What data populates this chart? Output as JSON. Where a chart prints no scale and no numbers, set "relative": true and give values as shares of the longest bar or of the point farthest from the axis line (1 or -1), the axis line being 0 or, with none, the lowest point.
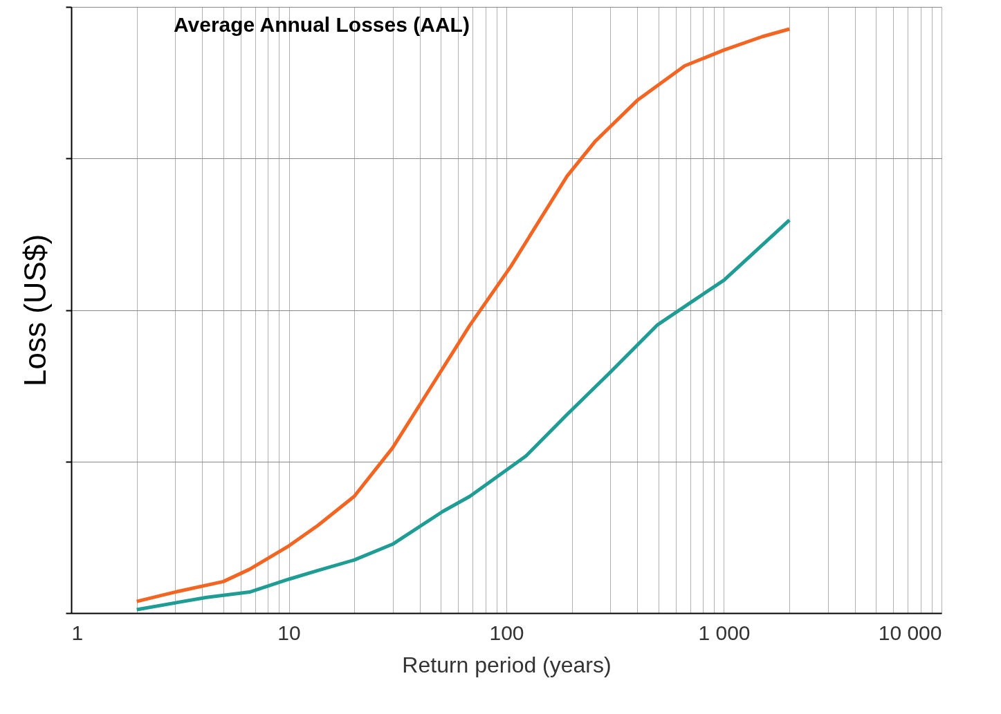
{
  "chart_data": {
    "type": "line",
    "title": "Average Annual Losses (AAL)",
    "xlabel": "Return period (years)",
    "ylabel": "Loss (US$)",
    "relative": true,
    "log": "x",
    "grid": true,
    "xlim": [
      1,
      10000
    ],
    "xticks": [
      {
        "value": 1,
        "label": "1"
      },
      {
        "value": 2,
        "label": null
      },
      {
        "value": 3,
        "label": null
      },
      {
        "value": 4,
        "label": null
      },
      {
        "value": 5,
        "label": null
      },
      {
        "value": 6,
        "label": null
      },
      {
        "value": 7,
        "label": null
      },
      {
        "value": 8,
        "label": null
      },
      {
        "value": 9,
        "label": null
      },
      {
        "value": 10,
        "label": "10"
      },
      {
        "value": 20,
        "label": null
      },
      {
        "value": 30,
        "label": null
      },
      {
        "value": 40,
        "label": null
      },
      {
        "value": 50,
        "label": null
      },
      {
        "value": 60,
        "label": null
      },
      {
        "value": 70,
        "label": null
      },
      {
        "value": 80,
        "label": null
      },
      {
        "value": 90,
        "label": null
      },
      {
        "value": 100,
        "label": "100"
      },
      {
        "value": 200,
        "label": null
      },
      {
        "value": 300,
        "label": null
      },
      {
        "value": 400,
        "label": null
      },
      {
        "value": 500,
        "label": null
      },
      {
        "value": 600,
        "label": null
      },
      {
        "value": 700,
        "label": null
      },
      {
        "value": 800,
        "label": null
      },
      {
        "value": 900,
        "label": null
      },
      {
        "value": 1000,
        "label": "1 000"
      },
      {
        "value": 2000,
        "label": null
      },
      {
        "value": 3000,
        "label": null
      },
      {
        "value": 4000,
        "label": null
      },
      {
        "value": 5000,
        "label": null
      },
      {
        "value": 6000,
        "label": null
      },
      {
        "value": 7000,
        "label": null
      },
      {
        "value": 8000,
        "label": null
      },
      {
        "value": 9000,
        "label": null
      },
      {
        "value": 10000,
        "label": "10 000"
      }
    ],
    "series": [
      {
        "color": "#f26522",
        "x": [
          2,
          3,
          5,
          6.6,
          10,
          13.6,
          20,
          30,
          41,
          68,
          105,
          190,
          255,
          400,
          660,
          1000,
          1500,
          2000
        ],
        "values": [
          0.02,
          0.036,
          0.054,
          0.075,
          0.115,
          0.15,
          0.2,
          0.283,
          0.363,
          0.493,
          0.594,
          0.748,
          0.807,
          0.878,
          0.937,
          0.964,
          0.987,
          1
        ]
      },
      {
        "color": "#1f9c94",
        "x": [
          2,
          4.2,
          6.6,
          10,
          13.6,
          20,
          30,
          51,
          68,
          123,
          190,
          296,
          493,
          711,
          1000,
          2000
        ],
        "values": [
          0.006,
          0.027,
          0.036,
          0.058,
          0.073,
          0.091,
          0.118,
          0.174,
          0.2,
          0.269,
          0.34,
          0.41,
          0.493,
          0.533,
          0.57,
          0.673
        ]
      }
    ]
  }
}
